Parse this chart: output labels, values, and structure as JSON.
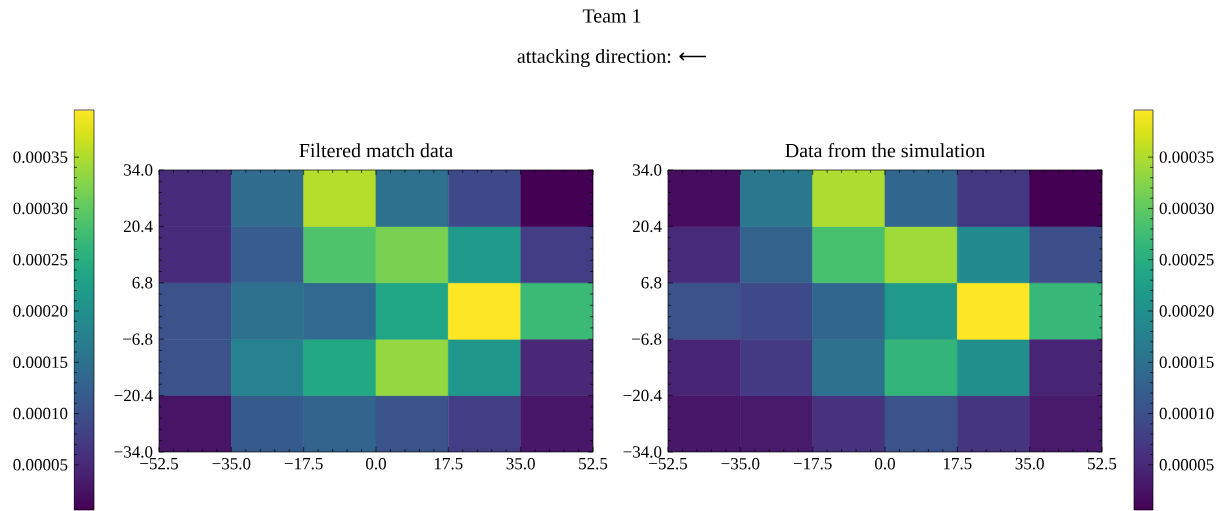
{
  "chart_data": [
    {
      "type": "other",
      "title": "Team 1",
      "subtitle": "attacking direction: ⟵"
    },
    {
      "type": "heatmap",
      "title": "Filtered match data",
      "cells": [
        [
          5.3e-05,
          0.000143,
          0.000353,
          0.00015,
          9.2e-05,
          6e-06
        ],
        [
          5.3e-05,
          0.000119,
          0.000287,
          0.000318,
          0.000217,
          7.6e-05
        ],
        [
          0.000104,
          0.00015,
          0.000139,
          0.000236,
          0.000396,
          0.000271
        ],
        [
          0.000104,
          0.000178,
          0.00024,
          0.000334,
          0.000213,
          4.9e-05
        ],
        [
          2.6e-05,
          0.000115,
          0.000131,
          0.000107,
          7.6e-05,
          2.9e-05
        ]
      ],
      "clim": [
        6e-06,
        0.000396
      ],
      "cticks": [
        {
          "value": 5e-05,
          "label": "0.00005"
        },
        {
          "value": 0.0001,
          "label": "0.00010"
        },
        {
          "value": 0.00015,
          "label": "0.00015"
        },
        {
          "value": 0.0002,
          "label": "0.00020"
        },
        {
          "value": 0.00025,
          "label": "0.00025"
        },
        {
          "value": 0.0003,
          "label": "0.00030"
        },
        {
          "value": 0.00035,
          "label": "0.00035"
        }
      ],
      "xlim": [
        -52.5,
        52.5
      ],
      "ylim": [
        -34,
        34
      ],
      "xticks": [
        {
          "value": -52.5,
          "label": "−52.5"
        },
        {
          "value": -35,
          "label": "−35.0"
        },
        {
          "value": -17.5,
          "label": "−17.5"
        },
        {
          "value": 0,
          "label": "0.0"
        },
        {
          "value": 17.5,
          "label": "17.5"
        },
        {
          "value": 35,
          "label": "35.0"
        },
        {
          "value": 52.5,
          "label": "52.5"
        }
      ],
      "yticks": [
        {
          "value": -34,
          "label": "−34.0"
        },
        {
          "value": -20.4,
          "label": "−20.4"
        },
        {
          "value": -6.8,
          "label": "−6.8"
        },
        {
          "value": 6.8,
          "label": "6.8"
        },
        {
          "value": 20.4,
          "label": "20.4"
        },
        {
          "value": 34,
          "label": "34.0"
        }
      ]
    },
    {
      "type": "heatmap",
      "title": "Data from the simulation",
      "cells": [
        [
          1.8e-05,
          0.000162,
          0.000349,
          0.000135,
          6.8e-05,
          6e-06
        ],
        [
          5.3e-05,
          0.000127,
          0.000283,
          0.000341,
          0.000193,
          0.0001
        ],
        [
          0.000104,
          9.2e-05,
          0.000135,
          0.000217,
          0.000396,
          0.000267
        ],
        [
          4.5e-05,
          7.2e-05,
          0.00015,
          0.000263,
          0.000201,
          4.5e-05
        ],
        [
          2.9e-05,
          3.3e-05,
          6.1e-05,
          0.000104,
          6.5e-05,
          3.3e-05
        ]
      ],
      "clim": [
        6e-06,
        0.000396
      ],
      "cticks": [
        {
          "value": 5e-05,
          "label": "0.00005"
        },
        {
          "value": 0.0001,
          "label": "0.00010"
        },
        {
          "value": 0.00015,
          "label": "0.00015"
        },
        {
          "value": 0.0002,
          "label": "0.00020"
        },
        {
          "value": 0.00025,
          "label": "0.00025"
        },
        {
          "value": 0.0003,
          "label": "0.00030"
        },
        {
          "value": 0.00035,
          "label": "0.00035"
        }
      ],
      "xlim": [
        -52.5,
        52.5
      ],
      "ylim": [
        -34,
        34
      ],
      "xticks": [
        {
          "value": -52.5,
          "label": "−52.5"
        },
        {
          "value": -35,
          "label": "−35.0"
        },
        {
          "value": -17.5,
          "label": "−17.5"
        },
        {
          "value": 0,
          "label": "0.0"
        },
        {
          "value": 17.5,
          "label": "17.5"
        },
        {
          "value": 35,
          "label": "35.0"
        },
        {
          "value": 52.5,
          "label": "52.5"
        }
      ],
      "yticks": [
        {
          "value": -34,
          "label": "−34.0"
        },
        {
          "value": -20.4,
          "label": "−20.4"
        },
        {
          "value": -6.8,
          "label": "−6.8"
        },
        {
          "value": 6.8,
          "label": "6.8"
        },
        {
          "value": 20.4,
          "label": "20.4"
        },
        {
          "value": 34,
          "label": "34.0"
        }
      ]
    }
  ]
}
